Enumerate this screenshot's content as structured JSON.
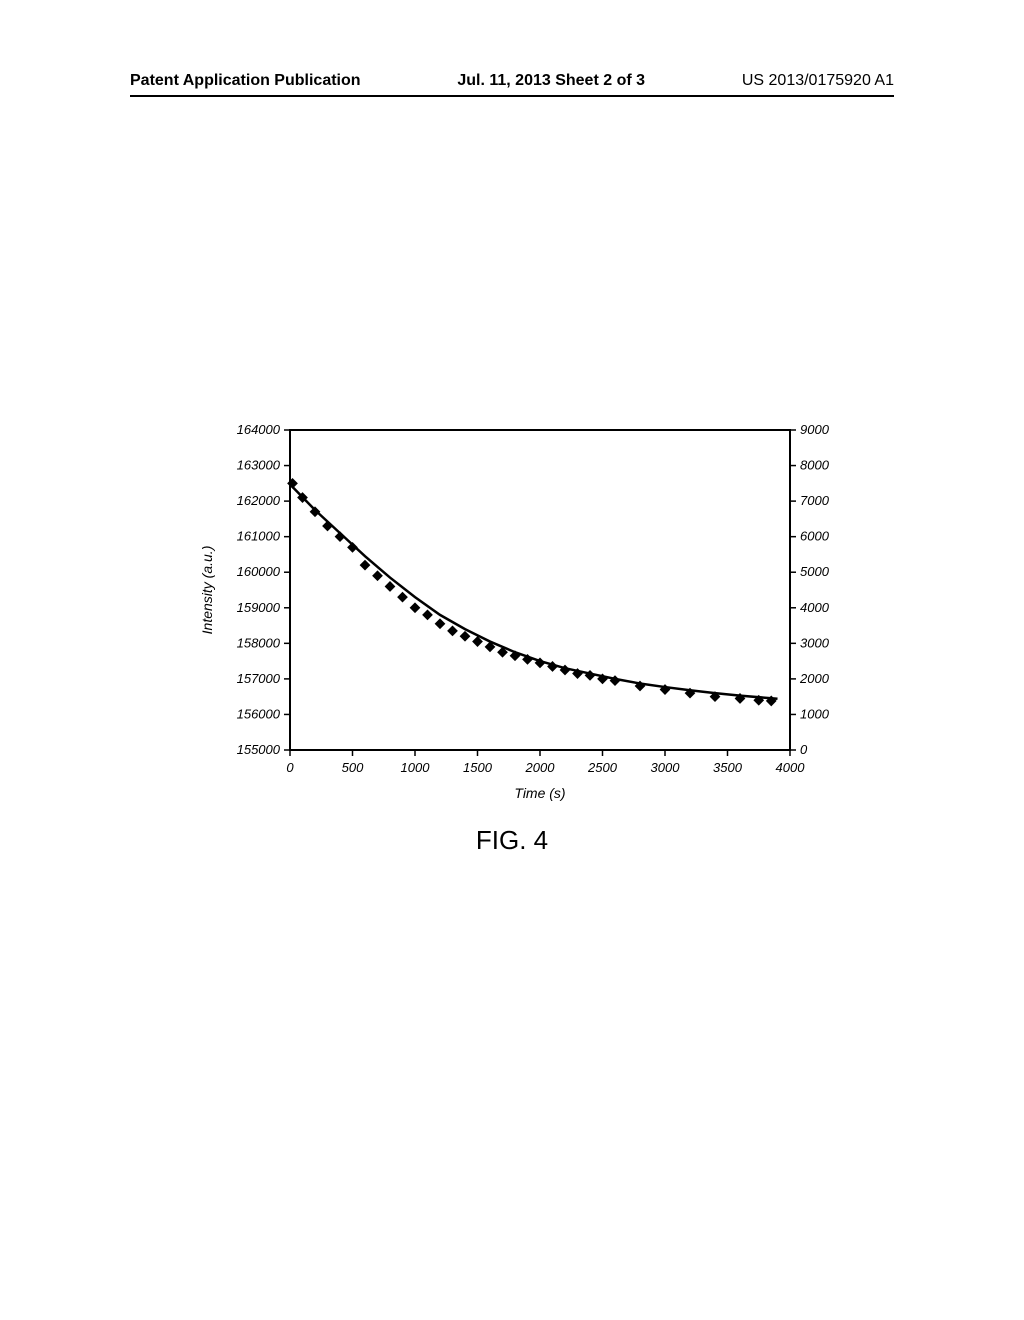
{
  "header": {
    "left": "Patent Application Publication",
    "center": "Jul. 11, 2013  Sheet 2 of 3",
    "right": "US 2013/0175920 A1"
  },
  "figure": {
    "caption": "FIG. 4",
    "chart": {
      "type": "scatter-line",
      "xlabel": "Time (s)",
      "ylabel": "Intensity (a.u.)",
      "label_fontsize": 14,
      "label_fontstyle": "italic",
      "tick_fontsize": 13,
      "tick_fontstyle": "italic",
      "xlim": [
        0,
        4000
      ],
      "xtick_step": 500,
      "xticks": [
        0,
        500,
        1000,
        1500,
        2000,
        2500,
        3000,
        3500,
        4000
      ],
      "y1lim": [
        155000,
        164000
      ],
      "y1tick_step": 1000,
      "y1ticks": [
        155000,
        156000,
        157000,
        158000,
        159000,
        160000,
        161000,
        162000,
        163000,
        164000
      ],
      "y2lim": [
        0,
        9000
      ],
      "y2tick_step": 1000,
      "y2ticks": [
        0,
        1000,
        2000,
        3000,
        4000,
        5000,
        6000,
        7000,
        8000,
        9000
      ],
      "background_color": "#ffffff",
      "axis_color": "#000000",
      "marker_style": "diamond",
      "marker_color": "#000000",
      "marker_size": 7,
      "line_color": "#000000",
      "line_width": 2.5,
      "data_points": [
        {
          "x": 20,
          "y": 162500
        },
        {
          "x": 100,
          "y": 162100
        },
        {
          "x": 200,
          "y": 161700
        },
        {
          "x": 300,
          "y": 161300
        },
        {
          "x": 400,
          "y": 161000
        },
        {
          "x": 500,
          "y": 160700
        },
        {
          "x": 600,
          "y": 160200
        },
        {
          "x": 700,
          "y": 159900
        },
        {
          "x": 800,
          "y": 159600
        },
        {
          "x": 900,
          "y": 159300
        },
        {
          "x": 1000,
          "y": 159000
        },
        {
          "x": 1100,
          "y": 158800
        },
        {
          "x": 1200,
          "y": 158550
        },
        {
          "x": 1300,
          "y": 158350
        },
        {
          "x": 1400,
          "y": 158200
        },
        {
          "x": 1500,
          "y": 158050
        },
        {
          "x": 1600,
          "y": 157900
        },
        {
          "x": 1700,
          "y": 157750
        },
        {
          "x": 1800,
          "y": 157650
        },
        {
          "x": 1900,
          "y": 157550
        },
        {
          "x": 2000,
          "y": 157450
        },
        {
          "x": 2100,
          "y": 157350
        },
        {
          "x": 2200,
          "y": 157250
        },
        {
          "x": 2300,
          "y": 157150
        },
        {
          "x": 2400,
          "y": 157100
        },
        {
          "x": 2500,
          "y": 157000
        },
        {
          "x": 2600,
          "y": 156950
        },
        {
          "x": 2800,
          "y": 156800
        },
        {
          "x": 3000,
          "y": 156700
        },
        {
          "x": 3200,
          "y": 156600
        },
        {
          "x": 3400,
          "y": 156500
        },
        {
          "x": 3600,
          "y": 156450
        },
        {
          "x": 3750,
          "y": 156400
        },
        {
          "x": 3850,
          "y": 156380
        }
      ],
      "fit_curve": [
        {
          "x": 20,
          "y": 162400
        },
        {
          "x": 200,
          "y": 161750
        },
        {
          "x": 400,
          "y": 161100
        },
        {
          "x": 600,
          "y": 160450
        },
        {
          "x": 800,
          "y": 159850
        },
        {
          "x": 1000,
          "y": 159300
        },
        {
          "x": 1200,
          "y": 158800
        },
        {
          "x": 1400,
          "y": 158400
        },
        {
          "x": 1600,
          "y": 158050
        },
        {
          "x": 1800,
          "y": 157750
        },
        {
          "x": 2000,
          "y": 157500
        },
        {
          "x": 2200,
          "y": 157300
        },
        {
          "x": 2400,
          "y": 157150
        },
        {
          "x": 2600,
          "y": 157000
        },
        {
          "x": 2800,
          "y": 156870
        },
        {
          "x": 3000,
          "y": 156770
        },
        {
          "x": 3200,
          "y": 156680
        },
        {
          "x": 3400,
          "y": 156600
        },
        {
          "x": 3600,
          "y": 156530
        },
        {
          "x": 3800,
          "y": 156470
        },
        {
          "x": 3900,
          "y": 156440
        }
      ]
    }
  }
}
